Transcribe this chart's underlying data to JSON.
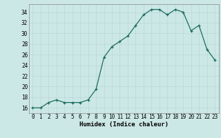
{
  "x": [
    0,
    1,
    2,
    3,
    4,
    5,
    6,
    7,
    8,
    9,
    10,
    11,
    12,
    13,
    14,
    15,
    16,
    17,
    18,
    19,
    20,
    21,
    22,
    23
  ],
  "y": [
    16,
    16,
    17,
    17.5,
    17,
    17,
    17,
    17.5,
    19.5,
    25.5,
    27.5,
    28.5,
    29.5,
    31.5,
    33.5,
    34.5,
    34.5,
    33.5,
    34.5,
    34,
    30.5,
    31.5,
    27,
    25
  ],
  "xlabel": "Humidex (Indice chaleur)",
  "xlim": [
    -0.5,
    23.5
  ],
  "ylim": [
    15,
    35.5
  ],
  "yticks": [
    16,
    18,
    20,
    22,
    24,
    26,
    28,
    30,
    32,
    34
  ],
  "xticks": [
    0,
    1,
    2,
    3,
    4,
    5,
    6,
    7,
    8,
    9,
    10,
    11,
    12,
    13,
    14,
    15,
    16,
    17,
    18,
    19,
    20,
    21,
    22,
    23
  ],
  "line_color": "#1a6b5a",
  "marker": "+",
  "bg_color": "#cce8e6",
  "grid_color": "#b8d8d5",
  "label_fontsize": 6.5,
  "tick_fontsize": 5.5
}
